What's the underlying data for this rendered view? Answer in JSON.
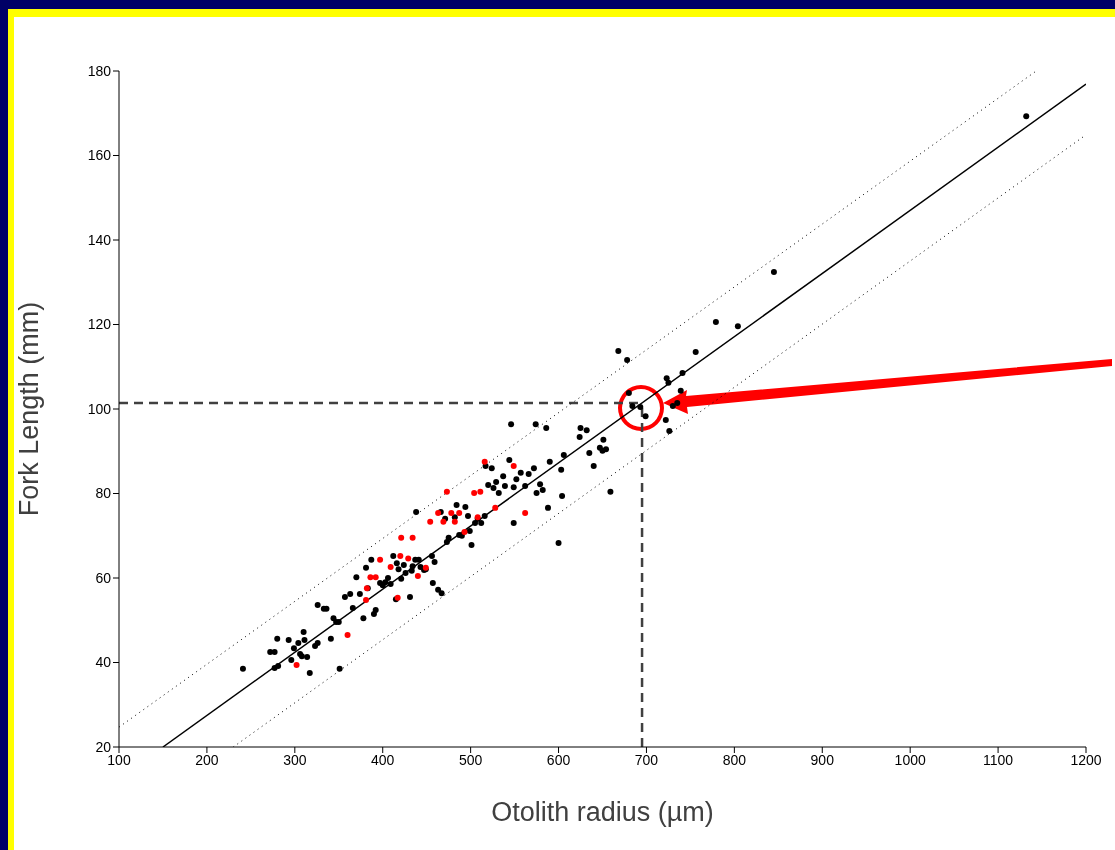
{
  "chart_data": {
    "type": "scatter",
    "xlabel": "Otolith radius (µm)",
    "ylabel": "Fork Length (mm)",
    "xlim": [
      100,
      1200
    ],
    "xticks": [
      100,
      200,
      300,
      400,
      500,
      600,
      700,
      800,
      900,
      1000,
      1100,
      1200
    ],
    "ylim": [
      20,
      180
    ],
    "yticks": [
      20,
      40,
      60,
      80,
      100,
      120,
      140,
      160,
      180
    ],
    "grid": false,
    "legend": false,
    "marker": "circle",
    "series": [
      {
        "color": "#000000",
        "x": [
          241,
          272,
          277,
          280,
          277,
          281,
          293,
          296,
          299,
          304,
          306,
          308,
          310,
          311,
          314,
          317,
          323,
          326,
          326,
          333,
          336,
          341,
          344,
          347,
          350,
          351,
          357,
          363,
          366,
          370,
          374,
          378,
          381,
          383,
          387,
          390,
          392,
          397,
          400,
          403,
          406,
          409,
          412,
          415,
          416,
          418,
          421,
          424,
          426,
          431,
          433,
          434,
          437,
          438,
          441,
          443,
          447,
          449,
          456,
          457,
          459,
          463,
          466,
          467,
          471,
          473,
          475,
          482,
          484,
          487,
          490,
          494,
          497,
          499,
          501,
          505,
          508,
          512,
          516,
          517,
          520,
          524,
          526,
          529,
          532,
          537,
          539,
          544,
          546,
          549,
          549,
          552,
          557,
          562,
          566,
          572,
          575,
          574,
          579,
          582,
          586,
          588,
          590,
          600,
          603,
          604,
          606,
          624,
          625,
          632,
          635,
          640,
          647,
          650,
          651,
          654,
          659,
          668,
          678,
          680,
          684,
          693,
          699,
          722,
          723,
          725,
          726,
          730,
          735,
          739,
          741,
          756,
          779,
          804,
          845,
          1132
        ],
        "values": [
          38.5,
          42.5,
          42.5,
          45.6,
          38.7,
          39.2,
          45.3,
          40.6,
          43.4,
          44.6,
          42,
          41.5,
          47.2,
          45.3,
          41.3,
          37.5,
          43.9,
          44.6,
          53.6,
          52.7,
          52.7,
          45.6,
          50.5,
          49.6,
          49.6,
          38.5,
          55.5,
          56.2,
          52.9,
          60.2,
          56.2,
          50.5,
          62.4,
          57.6,
          64.3,
          51.5,
          52.4,
          58.8,
          58.3,
          59,
          60,
          58.6,
          65.2,
          55,
          63.5,
          62.1,
          59.8,
          63.1,
          61.2,
          55.5,
          61.7,
          62.8,
          64.3,
          75.6,
          64.3,
          62.6,
          61.9,
          62.1,
          65.2,
          58.8,
          63.8,
          57.2,
          75.6,
          56.4,
          74,
          68.5,
          69.5,
          74.4,
          77.3,
          70.2,
          70,
          76.8,
          74.7,
          71.1,
          67.8,
          73,
          74,
          73,
          74.7,
          86.5,
          82,
          86,
          81.3,
          82.7,
          80.1,
          84.1,
          81.8,
          87.9,
          96.4,
          81.5,
          73,
          83.4,
          84.9,
          81.8,
          84.6,
          86,
          80.1,
          96.4,
          82.2,
          80.8,
          95.5,
          76.6,
          87.5,
          68.3,
          85.6,
          79.4,
          89.1,
          93.4,
          95.5,
          95,
          89.6,
          86.5,
          90.8,
          90.1,
          92.7,
          90.5,
          80.4,
          113.7,
          111.6,
          103.8,
          100.7,
          100.5,
          98.3,
          97.4,
          107.3,
          106.2,
          94.8,
          100.7,
          101.4,
          104.3,
          108.5,
          113.5,
          120.6,
          119.6,
          132.4,
          169.3
        ]
      },
      {
        "color": "#ff0000",
        "x": [
          302,
          360,
          381,
          382,
          386,
          392,
          397,
          409,
          417,
          421,
          420,
          429,
          434,
          440,
          449,
          454,
          463,
          469,
          473,
          478,
          482,
          487,
          493,
          504,
          508,
          511,
          516,
          528,
          549,
          562
        ],
        "values": [
          39.4,
          46.5,
          54.8,
          57.6,
          60.2,
          60.2,
          64.3,
          62.6,
          55.3,
          69.5,
          65.2,
          64.6,
          69.5,
          60.5,
          62.4,
          73.3,
          75.4,
          73.3,
          80.4,
          75.4,
          73.3,
          75.4,
          70.9,
          80.1,
          74.4,
          80.4,
          87.5,
          76.6,
          86.5,
          75.4
        ]
      },
      {
        "type": "line",
        "color": "#000000",
        "line_style": "solid",
        "marker": "none",
        "x": [
          150,
          1200
        ],
        "values": [
          20,
          176.9
        ]
      },
      {
        "type": "line",
        "color": "#000000",
        "line_style": "dotted",
        "marker": "none",
        "x": [
          100,
          1142
        ],
        "values": [
          24.7,
          179.8
        ]
      },
      {
        "type": "line",
        "color": "#000000",
        "line_style": "dotted",
        "marker": "none",
        "x": [
          230,
          1200
        ],
        "values": [
          20,
          164.9
        ]
      }
    ],
    "ref_lines": [
      {
        "axis": "y",
        "value": 101.4,
        "color": "#404040",
        "line_style": "dashed"
      },
      {
        "axis": "x",
        "value": 695,
        "color": "#404040",
        "line_style": "dashed"
      }
    ]
  }
}
